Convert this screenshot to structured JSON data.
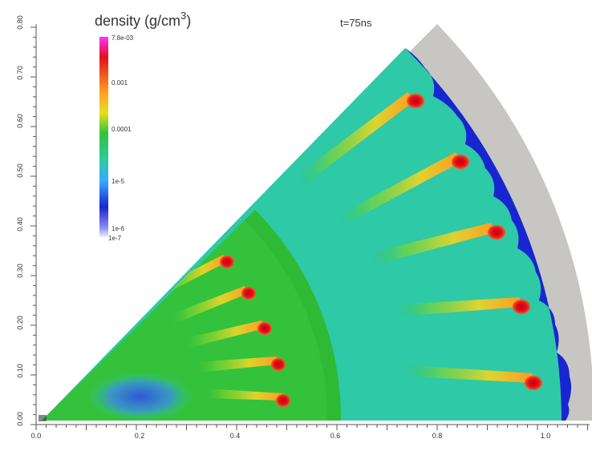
{
  "legend": {
    "title": "density (g/cm",
    "title_sup": "3",
    "title_close": ")",
    "ticks": [
      "7.8e-03",
      "0.001",
      "0.0001",
      "1e-5",
      "1e-6",
      "1e-7"
    ]
  },
  "time_label": "t=75ns",
  "x_axis": {
    "ticks": [
      "0.0",
      "0.2",
      "0.4",
      "0.6",
      "0.8",
      "1.0"
    ]
  },
  "y_axis": {
    "ticks": [
      "0.00",
      "0.10",
      "0.20",
      "0.30",
      "0.40",
      "0.50",
      "0.60",
      "0.70",
      "0.80"
    ]
  },
  "colors": {
    "background_gray": "#c8c6c3",
    "inner_green": "#34c23c",
    "outer_cyan": "#2ec9a6",
    "hot_red": "#e0101e",
    "shock_blue": "#1726d0"
  }
}
